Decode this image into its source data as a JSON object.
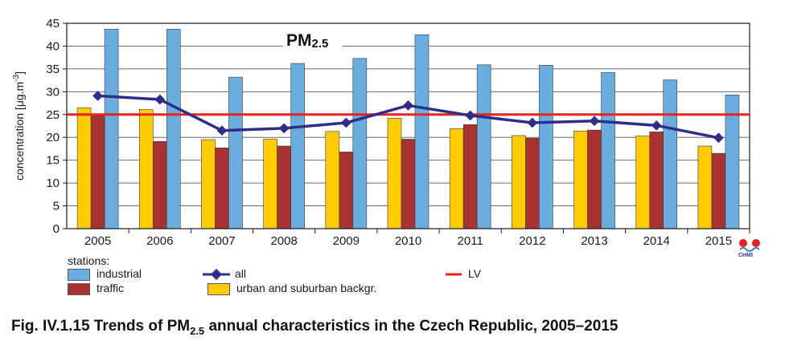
{
  "chart_data": {
    "type": "bar",
    "title_main": "PM",
    "title_sub": "2.5",
    "ylabel_main": "concentration [μg.m",
    "ylabel_sup": "-3",
    "ylabel_end": "]",
    "ylim": [
      0,
      45
    ],
    "yticks": [
      "0",
      "5",
      "10",
      "15",
      "20",
      "25",
      "30",
      "35",
      "40",
      "45"
    ],
    "categories": [
      "2005",
      "2006",
      "2007",
      "2008",
      "2009",
      "2010",
      "2011",
      "2012",
      "2013",
      "2014",
      "2015"
    ],
    "series": [
      {
        "name": "urban and suburban backgr.",
        "color": "#ffcc00",
        "values": [
          26.5,
          26.1,
          19.5,
          19.6,
          21.3,
          24.2,
          21.9,
          20.4,
          21.4,
          20.3,
          18.1
        ]
      },
      {
        "name": "traffic",
        "color": "#a83232",
        "values": [
          25.0,
          19.1,
          17.7,
          18.1,
          16.8,
          19.6,
          22.8,
          19.8,
          21.6,
          21.2,
          16.5
        ]
      },
      {
        "name": "industrial",
        "color": "#6aaee0",
        "values": [
          43.7,
          43.7,
          33.2,
          36.2,
          37.3,
          42.5,
          35.9,
          35.8,
          34.2,
          32.6,
          29.3
        ]
      }
    ],
    "line": {
      "name": "all",
      "color": "#2e2d8a",
      "values": [
        29.1,
        28.3,
        21.5,
        22.0,
        23.2,
        27.0,
        24.8,
        23.2,
        23.6,
        22.6,
        19.9
      ]
    },
    "limit": {
      "name": "LV",
      "value": 25,
      "color": "#e8231e"
    },
    "grid": true
  },
  "legend": {
    "heading": "stations:",
    "industrial": "industrial",
    "traffic": "traffic",
    "all": "all",
    "urban": "urban and suburban backgr.",
    "lv": "LV"
  },
  "caption": {
    "prefix": "Fig. IV.1.15  Trends of PM",
    "sub": "2.5",
    "suffix": " annual characteristics in the Czech Republic, 2005–2015"
  },
  "logo": {
    "text": "CHMI"
  },
  "colors": {
    "axis": "#1a1a1a",
    "grid": "#6b6b6b"
  }
}
